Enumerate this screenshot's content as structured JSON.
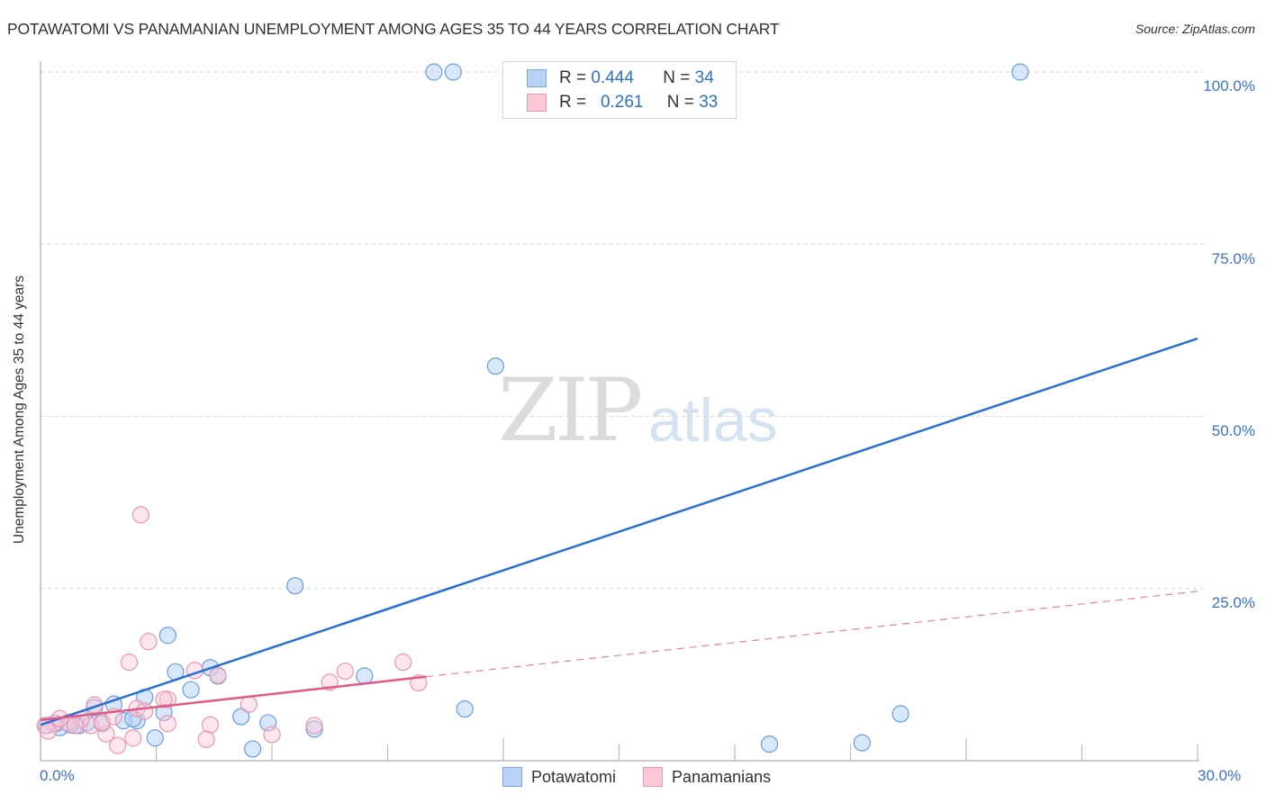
{
  "header": {
    "title": "POTAWATOMI VS PANAMANIAN UNEMPLOYMENT AMONG AGES 35 TO 44 YEARS CORRELATION CHART",
    "source": "Source: ZipAtlas.com"
  },
  "watermark": {
    "zip": "ZIP",
    "atlas": "atlas"
  },
  "legend": {
    "rows": [
      {
        "r_label": "R =",
        "r_value": "0.444",
        "n_label": "N =",
        "n_value": "34",
        "color": "#b8d3f5",
        "border": "#7aa7e0"
      },
      {
        "r_label": "R =",
        "r_value": "0.261",
        "n_label": "N =",
        "n_value": "33",
        "color": "#fbc8d6",
        "border": "#eb96ae"
      }
    ]
  },
  "bottom_legend": [
    {
      "label": "Potawatomi",
      "color": "#b8d3f5",
      "border": "#7aa7e0"
    },
    {
      "label": "Panamanians",
      "color": "#fbc8d6",
      "border": "#eb96ae"
    }
  ],
  "axes": {
    "y_label": "Unemployment Among Ages 35 to 44 years",
    "y_ticks": [
      "100.0%",
      "75.0%",
      "50.0%",
      "25.0%"
    ],
    "x_ticks": [
      "0.0%",
      "30.0%"
    ]
  },
  "chart_data": {
    "type": "scatter",
    "title": "POTAWATOMI VS PANAMANIAN UNEMPLOYMENT AMONG AGES 35 TO 44 YEARS CORRELATION CHART",
    "xlabel": "",
    "ylabel": "Unemployment Among Ages 35 to 44 years",
    "xlim": [
      0,
      30
    ],
    "ylim": [
      0,
      100
    ],
    "x_tick_labels": [
      "0.0%",
      "30.0%"
    ],
    "y_tick_labels": [
      "25.0%",
      "50.0%",
      "75.0%",
      "100.0%"
    ],
    "grid": true,
    "legend_position": "top-center",
    "series": [
      {
        "name": "Potawatomi",
        "color": "#4a86d8",
        "R": 0.444,
        "N": 34,
        "trend": {
          "x": [
            0,
            30
          ],
          "y": [
            5.2,
            61.3
          ]
        },
        "points": [
          [
            10.2,
            100
          ],
          [
            10.7,
            100
          ],
          [
            25.4,
            100
          ],
          [
            11.8,
            57.3
          ],
          [
            6.6,
            25.4
          ],
          [
            3.3,
            18.2
          ],
          [
            3.5,
            12.9
          ],
          [
            4.4,
            13.5
          ],
          [
            4.6,
            12.3
          ],
          [
            3.9,
            10.3
          ],
          [
            2.7,
            9.2
          ],
          [
            1.9,
            8.2
          ],
          [
            1.4,
            7.7
          ],
          [
            8.4,
            12.3
          ],
          [
            11.0,
            7.5
          ],
          [
            5.2,
            6.4
          ],
          [
            5.9,
            5.5
          ],
          [
            7.1,
            4.6
          ],
          [
            22.3,
            6.8
          ],
          [
            18.9,
            2.4
          ],
          [
            21.3,
            2.6
          ],
          [
            5.5,
            1.7
          ],
          [
            2.97,
            3.3
          ],
          [
            2.5,
            5.8
          ],
          [
            2.15,
            5.8
          ],
          [
            1.0,
            5.1
          ],
          [
            0.5,
            4.8
          ],
          [
            0.16,
            5.1
          ],
          [
            0.4,
            5.4
          ],
          [
            1.6,
            5.4
          ],
          [
            3.2,
            7.0
          ],
          [
            2.4,
            6.1
          ],
          [
            0.77,
            5.2
          ],
          [
            1.2,
            5.5
          ]
        ]
      },
      {
        "name": "Panamanians",
        "color": "#e86b93",
        "R": 0.261,
        "N": 33,
        "trend": {
          "x": [
            0,
            10
          ],
          "y": [
            5.9,
            12.2
          ]
        },
        "trend_dashed": {
          "x": [
            10,
            30
          ],
          "y": [
            12.2,
            24.6
          ]
        },
        "points": [
          [
            2.6,
            35.7
          ],
          [
            2.8,
            17.3
          ],
          [
            2.3,
            14.3
          ],
          [
            4.6,
            12.4
          ],
          [
            4.0,
            13.1
          ],
          [
            3.3,
            8.9
          ],
          [
            2.5,
            7.6
          ],
          [
            1.4,
            8.1
          ],
          [
            7.5,
            11.4
          ],
          [
            7.9,
            13.0
          ],
          [
            9.4,
            14.3
          ],
          [
            9.8,
            11.3
          ],
          [
            5.4,
            8.2
          ],
          [
            3.3,
            5.4
          ],
          [
            4.4,
            5.2
          ],
          [
            7.1,
            5.1
          ],
          [
            6.0,
            3.8
          ],
          [
            4.3,
            3.1
          ],
          [
            2.4,
            3.3
          ],
          [
            2.0,
            2.2
          ],
          [
            1.7,
            3.9
          ],
          [
            1.3,
            5.1
          ],
          [
            1.05,
            6.0
          ],
          [
            0.7,
            5.5
          ],
          [
            0.35,
            5.4
          ],
          [
            0.12,
            5.1
          ],
          [
            1.6,
            5.6
          ],
          [
            2.7,
            7.2
          ],
          [
            3.2,
            8.9
          ],
          [
            1.9,
            6.4
          ],
          [
            0.5,
            6.1
          ],
          [
            0.9,
            5.1
          ],
          [
            0.2,
            4.3
          ]
        ]
      }
    ]
  }
}
